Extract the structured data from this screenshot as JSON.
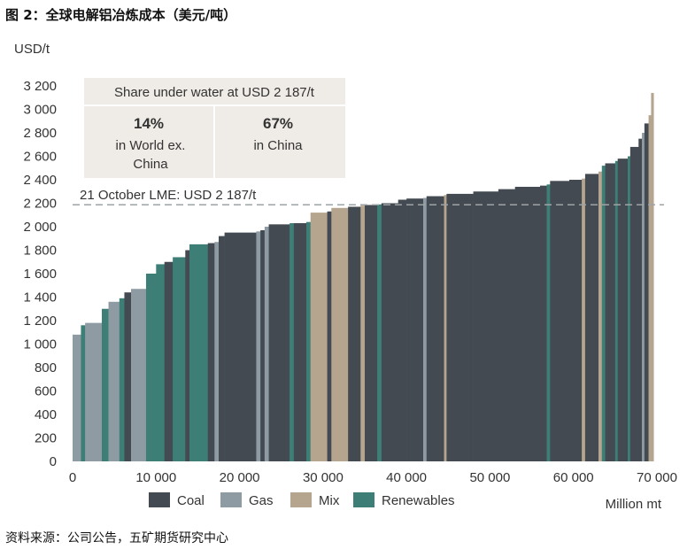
{
  "figure_title": "图 2：全球电解铝冶炼成本（美元/吨）",
  "source_note": "资料来源：公司公告，五矿期货研究中心",
  "colors": {
    "Coal": "#444a51",
    "Gas": "#8e9ba2",
    "Mix": "#b5a58e",
    "Renewables": "#3d7f76",
    "annotation_box": "#efebe6",
    "threshold_line": "#9ea3a6",
    "axis_text": "#333333"
  },
  "chart_data": {
    "type": "bar",
    "subtype": "cost-curve (variable-width bars)",
    "ylabel": "USD/t",
    "xlabel": "Million mt",
    "xlim": [
      0,
      70000
    ],
    "ylim": [
      0,
      3200
    ],
    "x_ticks": [
      "0",
      "10 000",
      "20 000",
      "30 000",
      "40 000",
      "50 000",
      "60 000",
      "70 000"
    ],
    "y_ticks": [
      "0",
      "200",
      "400",
      "600",
      "800",
      "1 000",
      "1 200",
      "1 400",
      "1 600",
      "1 800",
      "2 000",
      "2 200",
      "2 400",
      "2 600",
      "2 800",
      "3 000",
      "3 200"
    ],
    "grid": false,
    "legend": {
      "placement": "bottom",
      "entries": [
        "Coal",
        "Gas",
        "Mix",
        "Renewables"
      ]
    },
    "threshold": {
      "value": 2187,
      "label": "21 October LME: USD 2 187/t"
    },
    "annotation": {
      "header": "Share under water at USD 2 187/t",
      "cells": [
        {
          "value": "14%",
          "line1": "in World ex.",
          "line2": "China"
        },
        {
          "value": "67%",
          "line1": "in China",
          "line2": ""
        }
      ]
    },
    "bars": [
      {
        "x0": 0,
        "x1": 1000,
        "y": 1080,
        "source": "Gas"
      },
      {
        "x0": 1000,
        "x1": 1500,
        "y": 1160,
        "source": "Renewables"
      },
      {
        "x0": 1500,
        "x1": 3500,
        "y": 1180,
        "source": "Gas"
      },
      {
        "x0": 3500,
        "x1": 4300,
        "y": 1300,
        "source": "Renewables"
      },
      {
        "x0": 4300,
        "x1": 5600,
        "y": 1360,
        "source": "Gas"
      },
      {
        "x0": 5600,
        "x1": 6200,
        "y": 1390,
        "source": "Renewables"
      },
      {
        "x0": 6200,
        "x1": 7000,
        "y": 1440,
        "source": "Coal"
      },
      {
        "x0": 7000,
        "x1": 8800,
        "y": 1470,
        "source": "Gas"
      },
      {
        "x0": 8800,
        "x1": 10000,
        "y": 1600,
        "source": "Renewables"
      },
      {
        "x0": 10000,
        "x1": 11000,
        "y": 1680,
        "source": "Renewables"
      },
      {
        "x0": 11000,
        "x1": 12000,
        "y": 1700,
        "source": "Coal"
      },
      {
        "x0": 12000,
        "x1": 13500,
        "y": 1740,
        "source": "Renewables"
      },
      {
        "x0": 13500,
        "x1": 14000,
        "y": 1800,
        "source": "Coal"
      },
      {
        "x0": 14000,
        "x1": 16200,
        "y": 1850,
        "source": "Renewables"
      },
      {
        "x0": 16200,
        "x1": 17000,
        "y": 1860,
        "source": "Coal"
      },
      {
        "x0": 17000,
        "x1": 17500,
        "y": 1870,
        "source": "Gas"
      },
      {
        "x0": 17500,
        "x1": 18200,
        "y": 1920,
        "source": "Coal"
      },
      {
        "x0": 18200,
        "x1": 22000,
        "y": 1950,
        "source": "Coal"
      },
      {
        "x0": 22000,
        "x1": 22500,
        "y": 1960,
        "source": "Gas"
      },
      {
        "x0": 22500,
        "x1": 23000,
        "y": 1970,
        "source": "Coal"
      },
      {
        "x0": 23000,
        "x1": 23500,
        "y": 2000,
        "source": "Gas"
      },
      {
        "x0": 23500,
        "x1": 26000,
        "y": 2020,
        "source": "Coal"
      },
      {
        "x0": 26000,
        "x1": 26500,
        "y": 2030,
        "source": "Renewables"
      },
      {
        "x0": 26500,
        "x1": 28000,
        "y": 2030,
        "source": "Coal"
      },
      {
        "x0": 28000,
        "x1": 28500,
        "y": 2040,
        "source": "Renewables"
      },
      {
        "x0": 28500,
        "x1": 30500,
        "y": 2120,
        "source": "Mix"
      },
      {
        "x0": 30500,
        "x1": 31000,
        "y": 2130,
        "source": "Coal"
      },
      {
        "x0": 31000,
        "x1": 33000,
        "y": 2160,
        "source": "Mix"
      },
      {
        "x0": 33000,
        "x1": 34500,
        "y": 2170,
        "source": "Coal"
      },
      {
        "x0": 34500,
        "x1": 35000,
        "y": 2180,
        "source": "Mix"
      },
      {
        "x0": 35000,
        "x1": 36500,
        "y": 2185,
        "source": "Coal"
      },
      {
        "x0": 36500,
        "x1": 37000,
        "y": 2190,
        "source": "Renewables"
      },
      {
        "x0": 37000,
        "x1": 39000,
        "y": 2200,
        "source": "Coal"
      },
      {
        "x0": 39000,
        "x1": 40000,
        "y": 2230,
        "source": "Coal"
      },
      {
        "x0": 40000,
        "x1": 42000,
        "y": 2240,
        "source": "Coal"
      },
      {
        "x0": 42000,
        "x1": 42400,
        "y": 2245,
        "source": "Gas"
      },
      {
        "x0": 42400,
        "x1": 44500,
        "y": 2260,
        "source": "Coal"
      },
      {
        "x0": 44500,
        "x1": 44800,
        "y": 2270,
        "source": "Mix"
      },
      {
        "x0": 44800,
        "x1": 48000,
        "y": 2280,
        "source": "Coal"
      },
      {
        "x0": 48000,
        "x1": 51000,
        "y": 2300,
        "source": "Coal"
      },
      {
        "x0": 51000,
        "x1": 53000,
        "y": 2320,
        "source": "Coal"
      },
      {
        "x0": 53000,
        "x1": 56000,
        "y": 2340,
        "source": "Coal"
      },
      {
        "x0": 56000,
        "x1": 56800,
        "y": 2350,
        "source": "Coal"
      },
      {
        "x0": 56800,
        "x1": 57200,
        "y": 2360,
        "source": "Renewables"
      },
      {
        "x0": 57200,
        "x1": 59500,
        "y": 2390,
        "source": "Coal"
      },
      {
        "x0": 59500,
        "x1": 61000,
        "y": 2400,
        "source": "Coal"
      },
      {
        "x0": 61000,
        "x1": 61400,
        "y": 2410,
        "source": "Mix"
      },
      {
        "x0": 61400,
        "x1": 63000,
        "y": 2450,
        "source": "Coal"
      },
      {
        "x0": 63000,
        "x1": 63400,
        "y": 2470,
        "source": "Mix"
      },
      {
        "x0": 63400,
        "x1": 63800,
        "y": 2520,
        "source": "Renewables"
      },
      {
        "x0": 63800,
        "x1": 65000,
        "y": 2540,
        "source": "Coal"
      },
      {
        "x0": 65000,
        "x1": 65300,
        "y": 2560,
        "source": "Renewables"
      },
      {
        "x0": 65300,
        "x1": 66500,
        "y": 2580,
        "source": "Coal"
      },
      {
        "x0": 66500,
        "x1": 66800,
        "y": 2600,
        "source": "Renewables"
      },
      {
        "x0": 66800,
        "x1": 67800,
        "y": 2680,
        "source": "Coal"
      },
      {
        "x0": 67800,
        "x1": 68200,
        "y": 2750,
        "source": "Coal"
      },
      {
        "x0": 68200,
        "x1": 68500,
        "y": 2800,
        "source": "Gas"
      },
      {
        "x0": 68500,
        "x1": 69000,
        "y": 2880,
        "source": "Coal"
      },
      {
        "x0": 69000,
        "x1": 69300,
        "y": 2950,
        "source": "Mix"
      },
      {
        "x0": 69300,
        "x1": 69600,
        "y": 3140,
        "source": "Mix"
      }
    ]
  }
}
